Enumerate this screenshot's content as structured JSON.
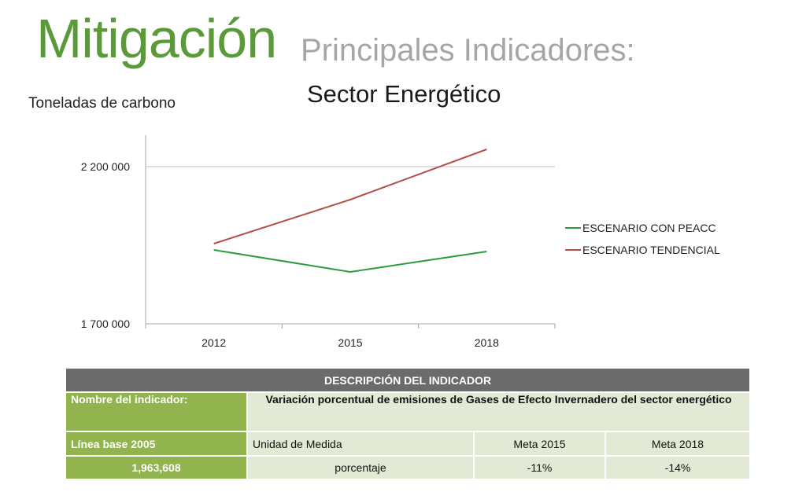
{
  "header": {
    "title": "Mitigación",
    "subtitle": "Principales Indicadores:"
  },
  "chart_data": {
    "type": "line",
    "title": "Sector Energético",
    "ylabel": "Toneladas de carbono",
    "xlabel": "",
    "categories": [
      "2012",
      "2015",
      "2018"
    ],
    "yticks": [
      1700000,
      2200000
    ],
    "ytick_labels": [
      "1 700 000",
      "2 200 000"
    ],
    "ylim": [
      1700000,
      2300000
    ],
    "grid": true,
    "legend_position": "right",
    "series": [
      {
        "name": "ESCENARIO CON PEACC",
        "color": "#2e9a3f",
        "values": [
          1935000,
          1865000,
          1930000
        ]
      },
      {
        "name": "ESCENARIO TENDENCIAL",
        "color": "#b5504b",
        "values": [
          1955000,
          2095000,
          2255000
        ]
      }
    ]
  },
  "table": {
    "header": "DESCRIPCIÓN DEL INDICADOR",
    "row1": {
      "label": "Nombre del indicador:",
      "value": "Variación porcentual de emisiones de Gases de Efecto Invernadero del sector energético"
    },
    "row2": [
      "Línea base 2005",
      "Unidad de Medida",
      "Meta 2015",
      "Meta 2018"
    ],
    "row3": [
      "1,963,608",
      "porcentaje",
      "-11%",
      "-14%"
    ]
  }
}
